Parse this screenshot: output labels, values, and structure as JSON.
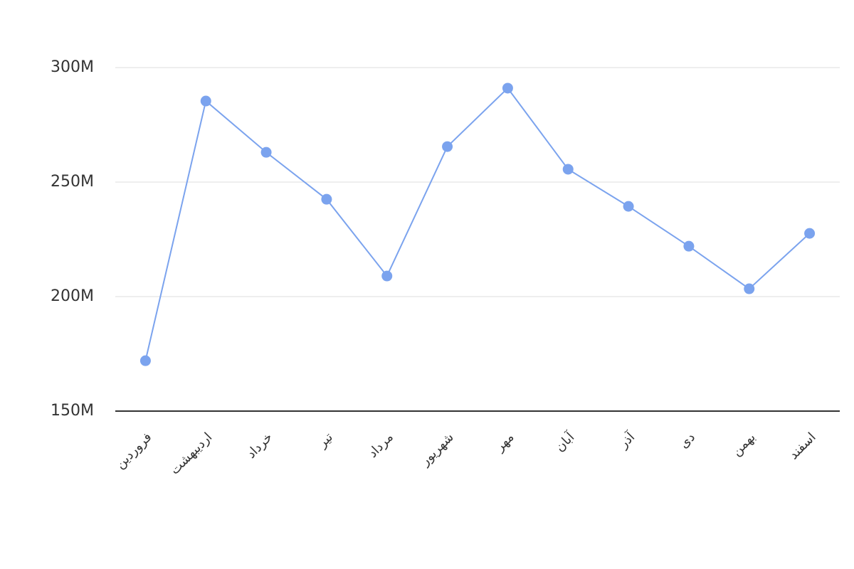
{
  "chart_data": {
    "type": "line",
    "categories": [
      "فروردین",
      "اردیبهشت",
      "خرداد",
      "تیر",
      "مرداد",
      "شهریور",
      "مهر",
      "آبان",
      "آذر",
      "دی",
      "بهمن",
      "اسفند"
    ],
    "series": [
      {
        "color": "#7ba3ee",
        "values": [
          172000000,
          285400000,
          263000000,
          242500000,
          209000000,
          265500000,
          291000000,
          255600000,
          239400000,
          222000000,
          203400000,
          227600000
        ]
      }
    ],
    "ylim": [
      150000000,
      300000000
    ],
    "yticks": [
      {
        "value": 150000000,
        "label": "150M"
      },
      {
        "value": 200000000,
        "label": "200M"
      },
      {
        "value": 250000000,
        "label": "250M"
      },
      {
        "value": 300000000,
        "label": "300M"
      }
    ],
    "grid": true
  }
}
